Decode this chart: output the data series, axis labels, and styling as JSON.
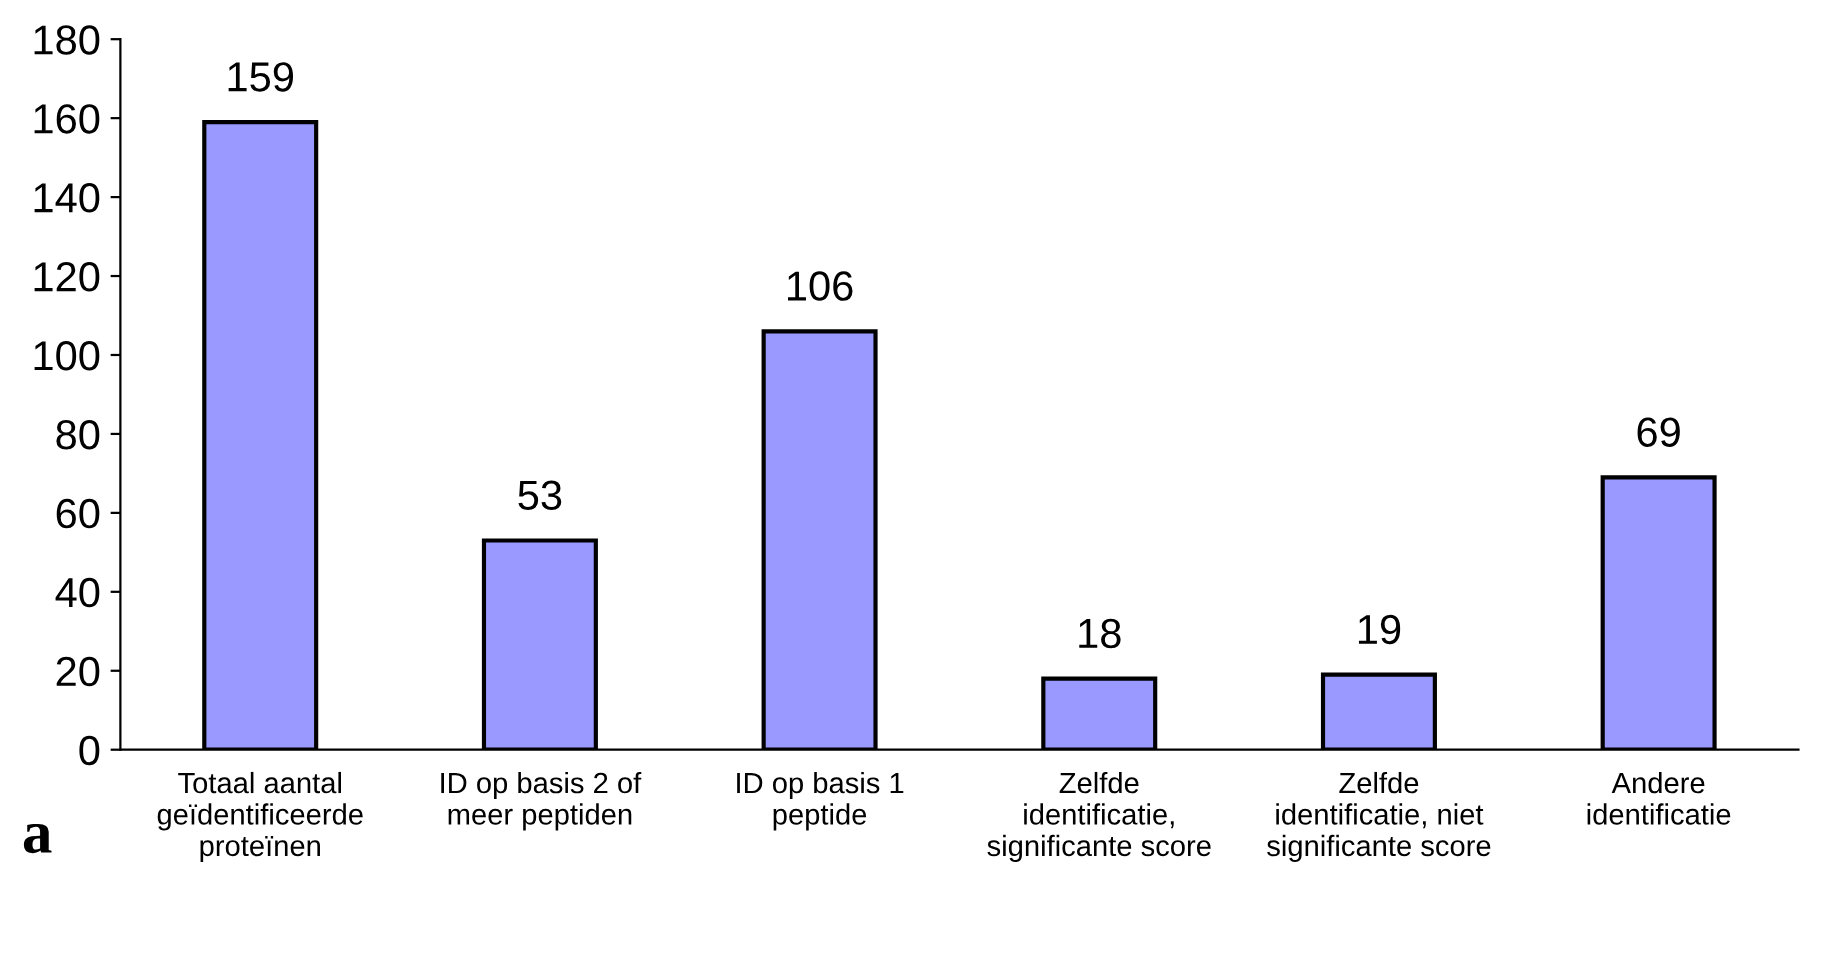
{
  "chart_data": {
    "type": "bar",
    "categories": [
      "Totaal aantal\ngeïdentificeerde\nproteïnen",
      "ID op basis 2 of\nmeer peptiden",
      "ID op basis 1\npeptide",
      "Zelfde\nidentificatie,\nsignificante score",
      "Zelfde\nidentificatie, niet\nsignificante score",
      "Andere\nidentificatie"
    ],
    "values": [
      159,
      53,
      106,
      18,
      19,
      69
    ],
    "color": "#9999ff",
    "ylim": [
      0,
      180
    ],
    "yticks": [
      0,
      20,
      40,
      60,
      80,
      100,
      120,
      140,
      160,
      180
    ],
    "data_labels": true,
    "grid": false,
    "legend": false,
    "annotations": [
      "a"
    ]
  }
}
